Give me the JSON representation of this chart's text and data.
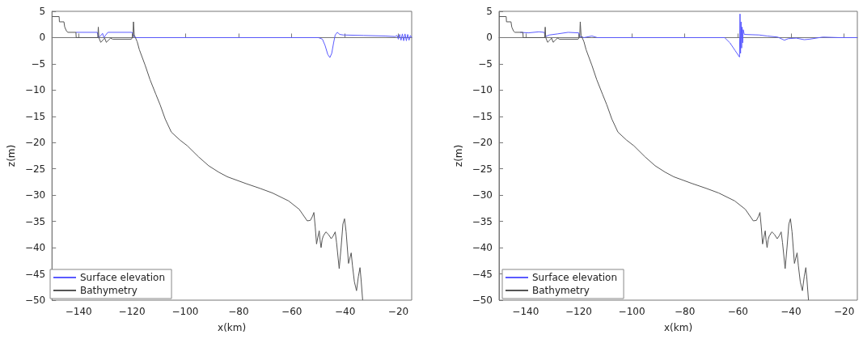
{
  "chart_data": [
    {
      "type": "line",
      "xlabel": "x(km)",
      "ylabel": "z(m)",
      "xlim": [
        -150,
        -15
      ],
      "xticks": [
        -140,
        -120,
        -100,
        -80,
        -60,
        -40,
        -20
      ],
      "ylim": [
        -50,
        5
      ],
      "yticks": [
        -50,
        -45,
        -40,
        -35,
        -30,
        -25,
        -20,
        -15,
        -10,
        -5,
        0,
        5
      ],
      "legend": "bottom left",
      "series": [
        {
          "name": "Surface elevation",
          "color": "#5a5aff",
          "x": [
            -141,
            -133,
            -132.5,
            -132,
            -131,
            -130.5,
            -129.8,
            -129,
            -120,
            -119.5,
            -119,
            -50,
            -48.5,
            -47.5,
            -46.5,
            -45.7,
            -45,
            -44.3,
            -43.7,
            -42.9,
            -42,
            -40.7,
            -33,
            -25,
            -21.2,
            -20.5,
            -20,
            -19.5,
            -19,
            -18.5,
            -18,
            -17.5,
            -17,
            -16.5,
            -16,
            -15.5,
            -15
          ],
          "values": [
            1,
            1,
            0,
            0.2,
            0.8,
            0,
            0.5,
            1,
            1,
            0.6,
            0,
            0,
            -0.3,
            -1.5,
            -3.2,
            -3.8,
            -3,
            -1,
            0.5,
            1,
            0.6,
            0.5,
            0.4,
            0.3,
            0.2,
            0.4,
            -0.3,
            0.6,
            -0.5,
            0.7,
            -0.6,
            0.7,
            -0.6,
            0.6,
            -0.5,
            0.4,
            0
          ]
        },
        {
          "name": "Bathymetry",
          "color": "#555555",
          "x": [
            -150,
            -147.3,
            -147.2,
            -145.5,
            -145.2,
            -144.5,
            -144,
            -141,
            -140.9,
            -132.8,
            -132.6,
            -132.4,
            -131.7,
            -130.9,
            -130.2,
            -129.6,
            -128.8,
            -128,
            -127.2,
            -120.2,
            -119.6,
            -119.4,
            -119.1,
            -118,
            -117.2,
            -115,
            -113.2,
            -111,
            -109.4,
            -107.5,
            -105.2,
            -102,
            -99.2,
            -95,
            -91.2,
            -87.5,
            -84.2,
            -77.2,
            -72,
            -67.2,
            -61.2,
            -57.2,
            -54.2,
            -53,
            -52.2,
            -51.7,
            -51.2,
            -50.7,
            -50.2,
            -49.7,
            -49.4,
            -49,
            -48.6,
            -48.2,
            -47.2,
            -46.2,
            -45.2,
            -44.5,
            -43.7,
            -43.2,
            -42.2,
            -41.5,
            -40.8,
            -40.2,
            -39.6,
            -38.7,
            -38.2,
            -37.7,
            -37.2,
            -36.5,
            -35.7,
            -35,
            -34.4,
            -34,
            -33.4
          ],
          "values": [
            4,
            4,
            3,
            3,
            2,
            1.2,
            1,
            1,
            0,
            0,
            2,
            0,
            -0.9,
            -0.5,
            -0.1,
            -0.9,
            -0.5,
            -0.1,
            -0.3,
            -0.3,
            0.2,
            3,
            0.5,
            -0.8,
            -2.3,
            -5.3,
            -8,
            -10.8,
            -12.8,
            -15.5,
            -18,
            -19.5,
            -20.6,
            -22.7,
            -24.4,
            -25.6,
            -26.5,
            -27.8,
            -28.7,
            -29.6,
            -31.1,
            -32.7,
            -34.9,
            -34.8,
            -34,
            -33.3,
            -36,
            -39.3,
            -38,
            -36.8,
            -38.5,
            -40,
            -38.5,
            -37.8,
            -37,
            -37.5,
            -38.3,
            -37.8,
            -37,
            -39,
            -44,
            -40,
            -35.5,
            -34.5,
            -37,
            -43,
            -42,
            -41,
            -43.5,
            -46.5,
            -48.2,
            -45.5,
            -43.8,
            -46,
            -50
          ]
        }
      ]
    },
    {
      "type": "line",
      "xlabel": "x(km)",
      "ylabel": "z(m)",
      "xlim": [
        -150,
        -15
      ],
      "xticks": [
        -140,
        -120,
        -100,
        -80,
        -60,
        -40,
        -20
      ],
      "ylim": [
        -50,
        5
      ],
      "yticks": [
        -50,
        -45,
        -40,
        -35,
        -30,
        -25,
        -20,
        -15,
        -10,
        -5,
        0,
        5
      ],
      "legend": "bottom left",
      "series": [
        {
          "name": "Surface elevation",
          "color": "#5a5aff",
          "x": [
            -142,
            -139,
            -135,
            -133,
            -132.5,
            -131,
            -128,
            -124,
            -120,
            -119.5,
            -118,
            -115,
            -113,
            -65,
            -63,
            -61,
            -59.4,
            -59.2,
            -59,
            -58.8,
            -58.6,
            -58.4,
            -58.2,
            -58,
            -57.6,
            -52,
            -49,
            -45,
            -42.5,
            -41,
            -38,
            -35,
            -33,
            -28,
            -22,
            -15
          ],
          "values": [
            1,
            0.9,
            1.1,
            1,
            0.2,
            0.5,
            0.7,
            1,
            0.9,
            0.2,
            0,
            0.3,
            0,
            0,
            -1,
            -2.5,
            -3.7,
            4.5,
            -3,
            3,
            -2,
            2,
            -1,
            1.5,
            0.6,
            0.5,
            0.3,
            0.1,
            -0.5,
            -0.2,
            -0.1,
            -0.4,
            -0.3,
            0.1,
            0,
            0
          ]
        },
        {
          "name": "Bathymetry",
          "color": "#555555",
          "x": [
            -150,
            -147.3,
            -147.2,
            -145.5,
            -145.2,
            -144.5,
            -144,
            -141,
            -140.9,
            -132.8,
            -132.6,
            -132.4,
            -131.7,
            -130.9,
            -130.2,
            -129.6,
            -128.8,
            -128,
            -127.2,
            -120.2,
            -119.6,
            -119.4,
            -119.1,
            -118,
            -117.2,
            -115,
            -113.2,
            -111,
            -109.4,
            -107.5,
            -105.2,
            -102,
            -99.2,
            -95,
            -91.2,
            -87.5,
            -84.2,
            -77.2,
            -72,
            -67.2,
            -61.2,
            -57.2,
            -54.2,
            -53,
            -52.2,
            -51.7,
            -51.2,
            -50.7,
            -50.2,
            -49.7,
            -49.4,
            -49,
            -48.6,
            -48.2,
            -47.2,
            -46.2,
            -45.2,
            -44.5,
            -43.7,
            -43.2,
            -42.2,
            -41.5,
            -40.8,
            -40.2,
            -39.6,
            -38.7,
            -38.2,
            -37.7,
            -37.2,
            -36.5,
            -35.7,
            -35,
            -34.4,
            -34,
            -33.4
          ],
          "values": [
            4,
            4,
            3,
            3,
            2,
            1.2,
            1,
            1,
            0,
            0,
            2,
            0,
            -0.9,
            -0.5,
            -0.1,
            -0.9,
            -0.5,
            -0.1,
            -0.3,
            -0.3,
            0.2,
            3,
            0.5,
            -0.8,
            -2.3,
            -5.3,
            -8,
            -10.8,
            -12.8,
            -15.5,
            -18,
            -19.5,
            -20.6,
            -22.7,
            -24.4,
            -25.6,
            -26.5,
            -27.8,
            -28.7,
            -29.6,
            -31.1,
            -32.7,
            -34.9,
            -34.8,
            -34,
            -33.3,
            -36,
            -39.3,
            -38,
            -36.8,
            -38.5,
            -40,
            -38.5,
            -37.8,
            -37,
            -37.5,
            -38.3,
            -37.8,
            -37,
            -39,
            -44,
            -40,
            -35.5,
            -34.5,
            -37,
            -43,
            -42,
            -41,
            -43.5,
            -46.5,
            -48.2,
            -45.5,
            -43.8,
            -46,
            -50
          ]
        }
      ]
    }
  ]
}
